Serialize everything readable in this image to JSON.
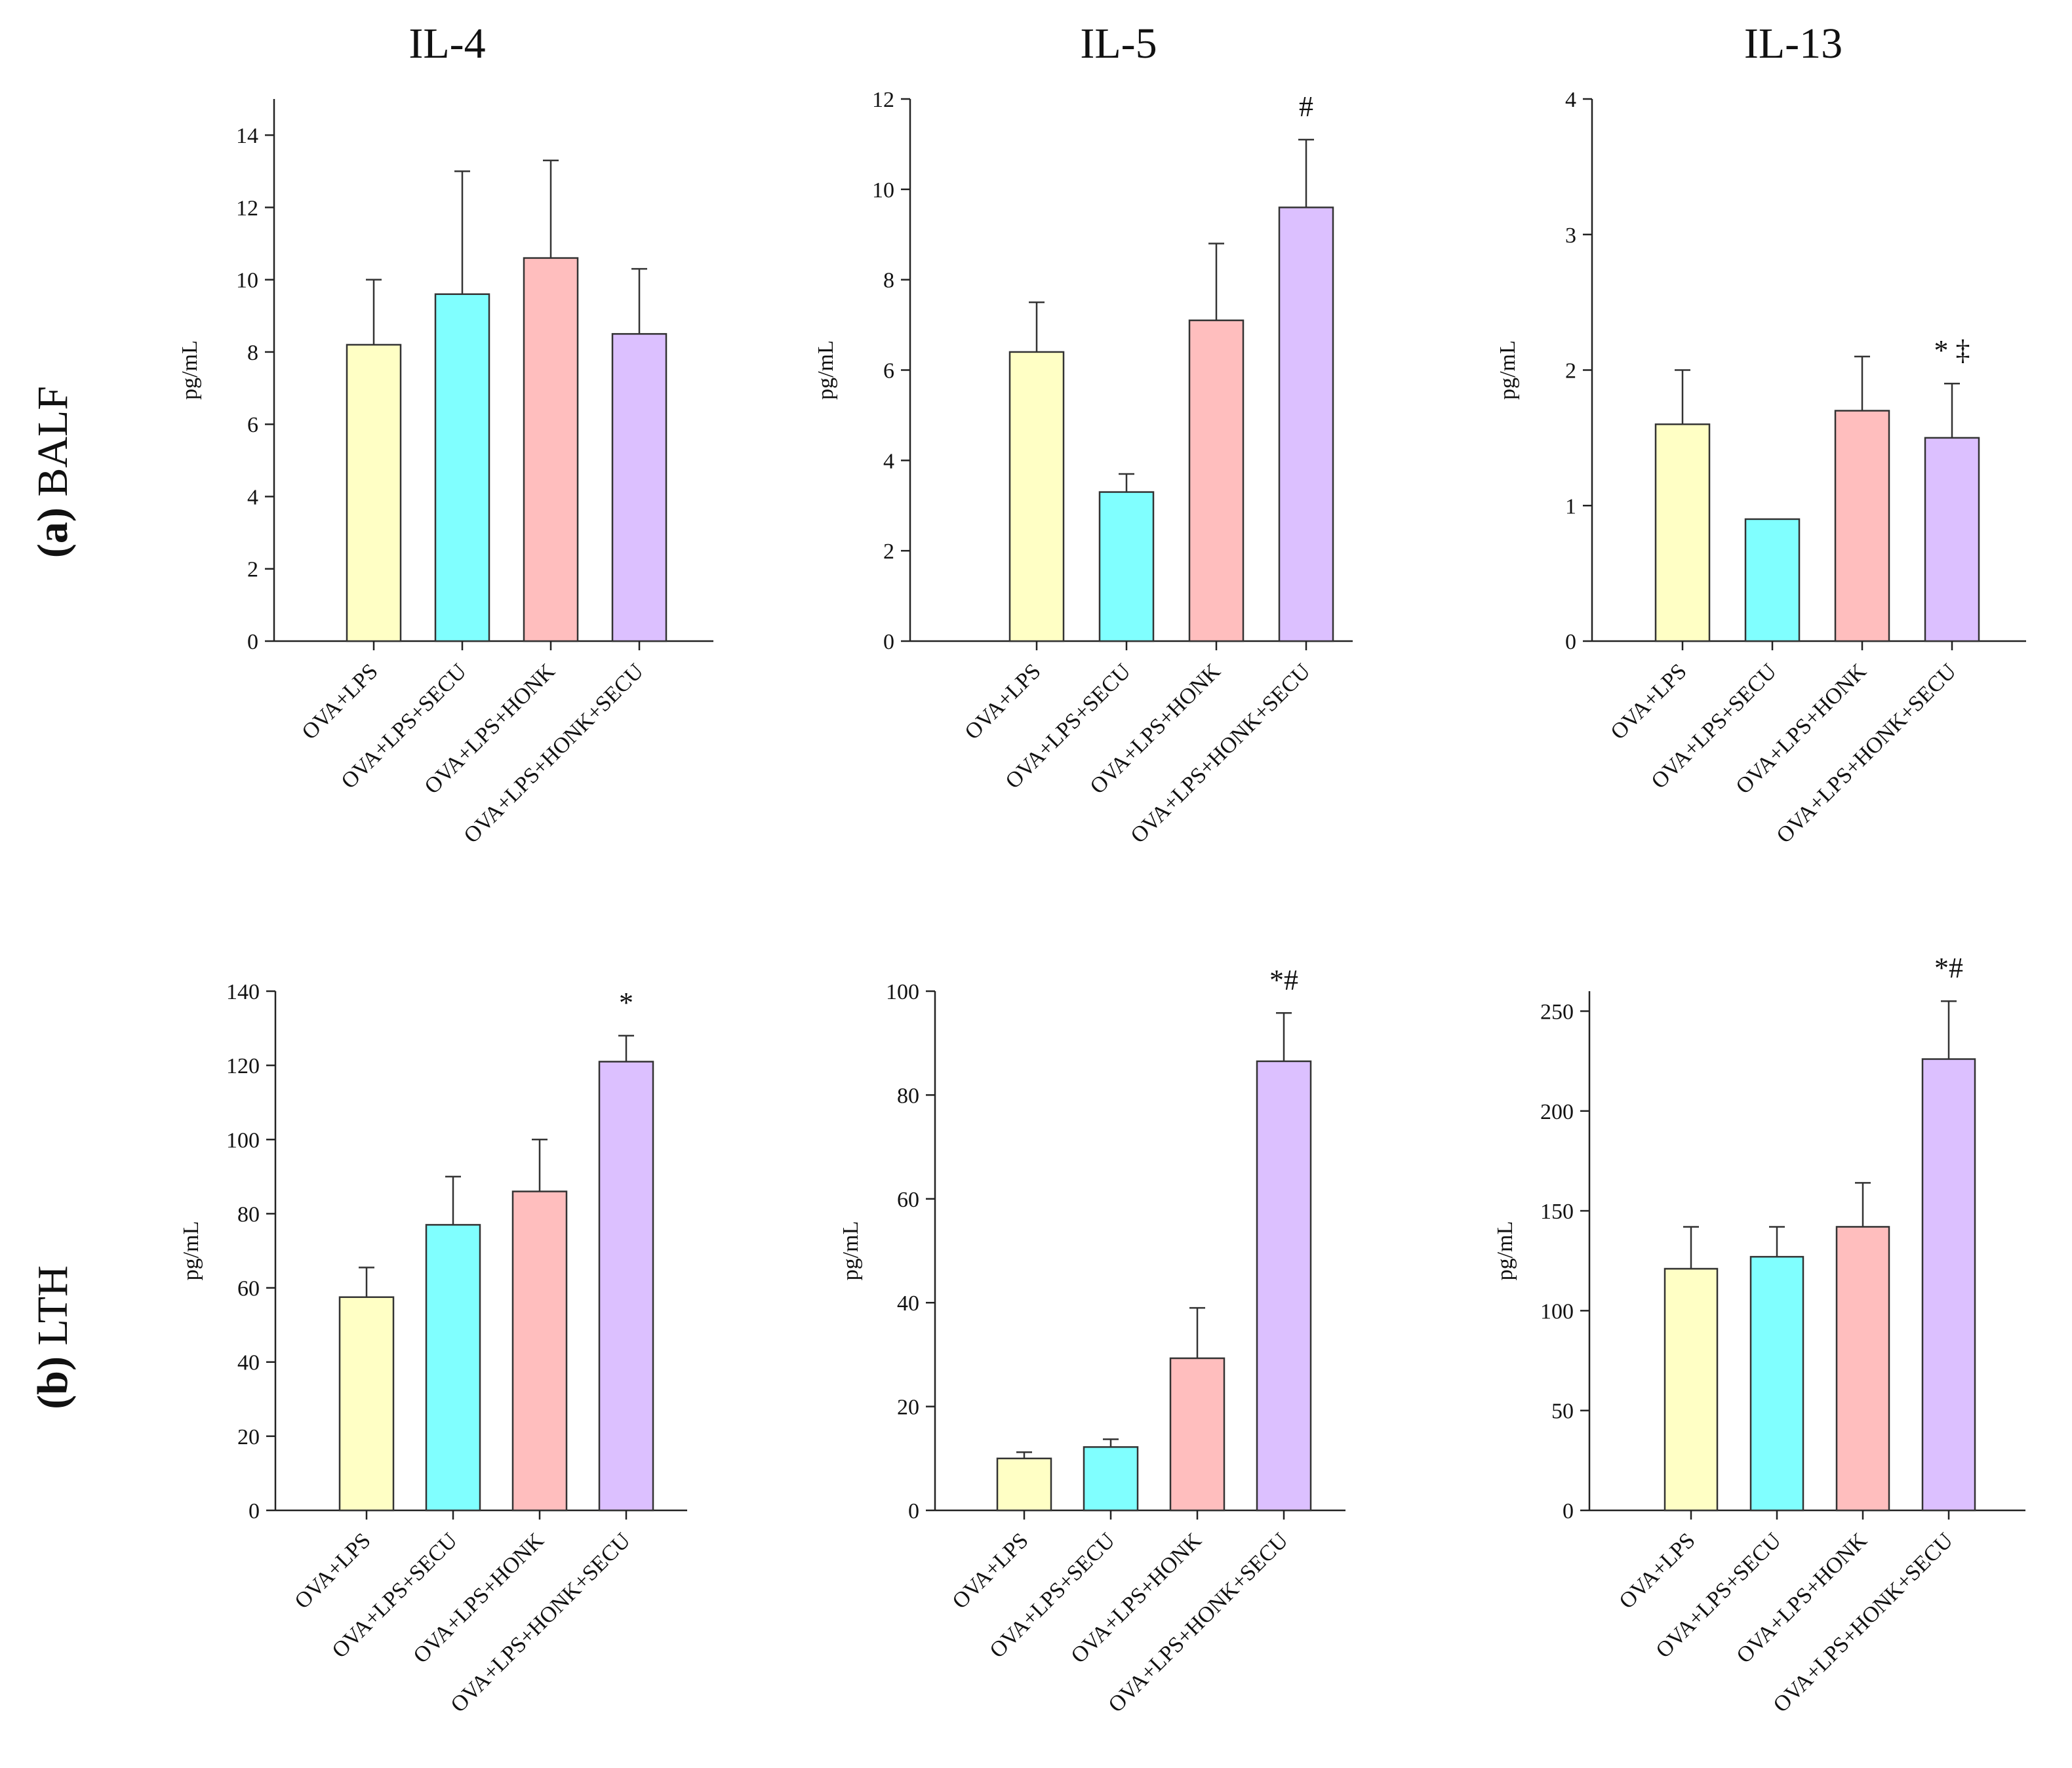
{
  "column_titles": [
    "IL-4",
    "IL-5",
    "IL-13"
  ],
  "row_labels": [
    {
      "prefix": "(a)",
      "name": "BALF"
    },
    {
      "prefix": "(b)",
      "name": "LTH"
    }
  ],
  "colors": [
    "#FFFFC5",
    "#80FFFF",
    "#FFBEBE",
    "#DCC0FF"
  ],
  "chart_data": [
    {
      "type": "bar",
      "row": "BALF",
      "title": "IL-4",
      "ylabel": "pg/mL",
      "categories": [
        "OVA+LPS",
        "OVA+LPS+SECU",
        "OVA+LPS+HONK",
        "OVA+LPS+HONK+SECU"
      ],
      "values": [
        8.2,
        9.6,
        10.6,
        8.5
      ],
      "errors": [
        1.8,
        3.4,
        2.7,
        1.8
      ],
      "significance": [
        "",
        "",
        "",
        ""
      ],
      "ylim": [
        0,
        15
      ],
      "yticks": [
        0,
        2,
        4,
        6,
        8,
        10,
        12,
        14
      ]
    },
    {
      "type": "bar",
      "row": "BALF",
      "title": "IL-5",
      "ylabel": "pg/mL",
      "categories": [
        "OVA+LPS",
        "OVA+LPS+SECU",
        "OVA+LPS+HONK",
        "OVA+LPS+HONK+SECU"
      ],
      "values": [
        6.4,
        3.3,
        7.1,
        9.6
      ],
      "errors": [
        1.1,
        0.4,
        1.7,
        1.5
      ],
      "significance": [
        "",
        "",
        "",
        "#"
      ],
      "ylim": [
        0,
        12
      ],
      "yticks": [
        0,
        2,
        4,
        6,
        8,
        10,
        12
      ]
    },
    {
      "type": "bar",
      "row": "BALF",
      "title": "IL-13",
      "ylabel": "pg/mL",
      "categories": [
        "OVA+LPS",
        "OVA+LPS+SECU",
        "OVA+LPS+HONK",
        "OVA+LPS+HONK+SECU"
      ],
      "values": [
        1.6,
        0.9,
        1.7,
        1.5
      ],
      "errors": [
        0.4,
        0,
        0.4,
        0.4
      ],
      "significance": [
        "",
        "",
        "",
        "* ‡"
      ],
      "ylim": [
        0,
        4
      ],
      "yticks": [
        0,
        1,
        2,
        3,
        4
      ]
    },
    {
      "type": "bar",
      "row": "LTH",
      "title": "IL-4",
      "ylabel": "pg/mL",
      "categories": [
        "OVA+LPS",
        "OVA+LPS+SECU",
        "OVA+LPS+HONK",
        "OVA+LPS+HONK+SECU"
      ],
      "values": [
        57.5,
        77,
        86,
        121
      ],
      "errors": [
        8,
        13,
        14,
        7
      ],
      "significance": [
        "",
        "",
        "",
        "*"
      ],
      "ylim": [
        0,
        140
      ],
      "yticks": [
        0,
        20,
        40,
        60,
        80,
        100,
        120,
        140
      ]
    },
    {
      "type": "bar",
      "row": "LTH",
      "title": "IL-5",
      "ylabel": "pg/mL",
      "categories": [
        "OVA+LPS",
        "OVA+LPS+SECU",
        "OVA+LPS+HONK",
        "OVA+LPS+HONK+SECU"
      ],
      "values": [
        10,
        12.2,
        29.3,
        86.5
      ],
      "errors": [
        1.2,
        1.5,
        9.7,
        9.3
      ],
      "significance": [
        "",
        "",
        "",
        "*#"
      ],
      "ylim": [
        0,
        100
      ],
      "yticks": [
        0,
        20,
        40,
        60,
        80,
        100
      ]
    },
    {
      "type": "bar",
      "row": "LTH",
      "title": "IL-13",
      "ylabel": "pg/mL",
      "categories": [
        "OVA+LPS",
        "OVA+LPS+SECU",
        "OVA+LPS+HONK",
        "OVA+LPS+HONK+SECU"
      ],
      "values": [
        121,
        127,
        142,
        226
      ],
      "errors": [
        21,
        15,
        22,
        29
      ],
      "significance": [
        "",
        "",
        "",
        "*#"
      ],
      "ylim": [
        0,
        260
      ],
      "yticks": [
        0,
        50,
        100,
        150,
        200,
        250
      ]
    }
  ]
}
